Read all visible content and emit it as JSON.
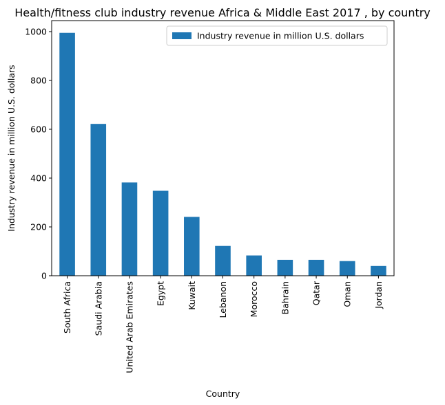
{
  "chart_data": {
    "type": "bar",
    "title": "Health/fitness club industry revenue Africa & Middle East 2017 , by country",
    "xlabel": "Country",
    "ylabel": "Industry revenue in million U.S. dollars",
    "categories": [
      "South Africa",
      "Saudi Arabia",
      "United Arab Emirates",
      "Egypt",
      "Kuwait",
      "Lebanon",
      "Morocco",
      "Bahrain",
      "Qatar",
      "Oman",
      "Jordan"
    ],
    "series": [
      {
        "name": "Industry revenue in million U.S. dollars",
        "values": [
          995,
          622,
          382,
          348,
          241,
          122,
          83,
          65,
          65,
          60,
          40
        ],
        "color": "#1f77b4"
      }
    ],
    "ylim": [
      0,
      1045
    ],
    "yticks": [
      0,
      200,
      400,
      600,
      800,
      1000
    ],
    "legend_position": "top-right",
    "grid": false
  }
}
